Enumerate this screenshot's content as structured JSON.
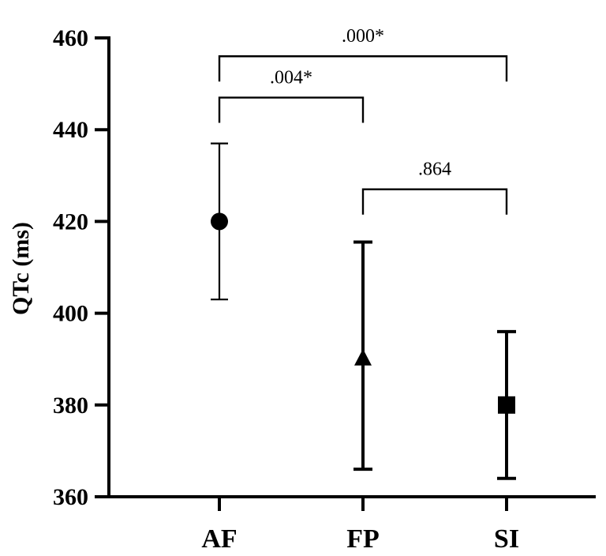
{
  "chart_data": {
    "type": "scatter",
    "title": "",
    "xlabel": "",
    "ylabel": "QTc (ms)",
    "categories": [
      "AF",
      "FP",
      "SI"
    ],
    "ylim": [
      360,
      460
    ],
    "yticks": [
      "360",
      "380",
      "400",
      "420",
      "440",
      "460"
    ],
    "series": [
      {
        "values": [
          420,
          390,
          380
        ],
        "err_low": [
          403,
          366,
          364
        ],
        "err_high": [
          437,
          415.5,
          396
        ],
        "markers": [
          "circle",
          "triangle",
          "square"
        ],
        "err_weights": [
          "thin",
          "thick",
          "thick"
        ]
      }
    ],
    "grid": false,
    "annotations": [
      {
        "from": 0,
        "to": 2,
        "text": ".000*",
        "level": 456
      },
      {
        "from": 0,
        "to": 1,
        "text": ".004*",
        "level": 447
      },
      {
        "from": 1,
        "to": 2,
        "text": ".864",
        "level": 427
      }
    ]
  }
}
